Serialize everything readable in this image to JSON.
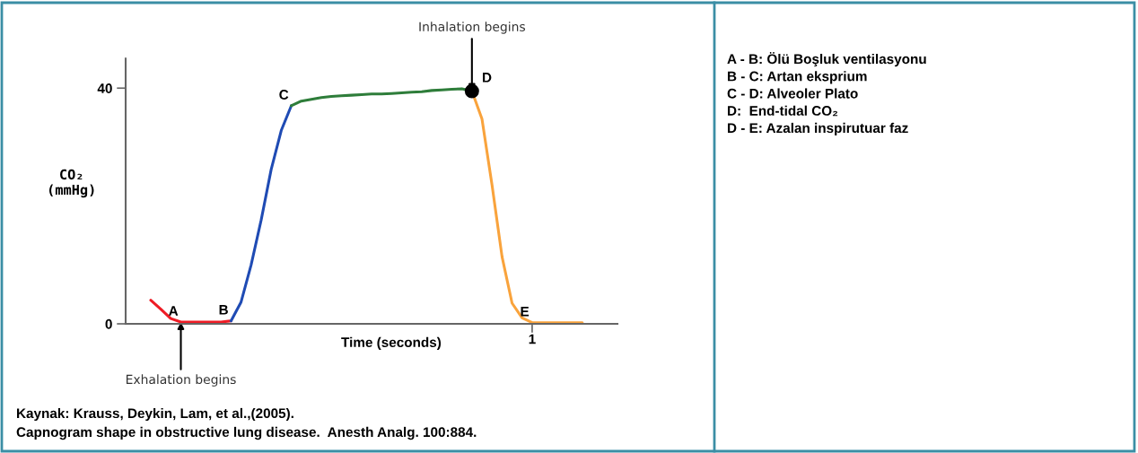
{
  "chart_data": {
    "type": "line",
    "xlabel": "Time (seconds)",
    "ylabel": "CO₂\n(mmHg)",
    "categories": [
      null,
      null,
      null,
      null,
      null,
      null,
      null,
      null,
      null,
      null,
      null,
      null,
      null,
      null,
      null,
      null,
      null,
      null,
      null,
      null,
      null,
      null,
      null,
      null,
      null,
      null,
      null,
      null,
      null,
      null,
      null,
      null,
      null,
      null,
      null,
      null,
      null,
      null,
      null,
      null,
      "1",
      null,
      null,
      null,
      null,
      null,
      null,
      null,
      null
    ],
    "ylim": [
      0,
      45
    ],
    "yticks": [
      0,
      40
    ],
    "grid": false,
    "legend": false,
    "marker": "none",
    "line_style": "solid",
    "series": [
      {
        "color": "#ee1c25",
        "values": [
          null,
          null,
          4.0,
          2.5,
          0.9,
          0.3,
          0.3,
          0.3,
          0.3,
          0.3,
          0.5,
          null,
          null,
          null,
          null,
          null,
          null,
          null,
          null,
          null,
          null,
          null,
          null,
          null,
          null,
          null,
          null,
          null,
          null,
          null,
          null,
          null,
          null,
          null,
          null,
          null,
          null,
          null,
          null,
          null,
          null,
          null,
          null,
          null,
          null,
          null,
          null,
          null,
          null
        ],
        "value_labels": [
          null,
          null,
          null,
          null,
          null,
          "A",
          null,
          null,
          null,
          null,
          "B",
          null,
          null,
          null,
          null,
          null,
          null,
          null,
          null,
          null,
          null,
          null,
          null,
          null,
          null,
          null,
          null,
          null,
          null,
          null,
          null,
          null,
          null,
          null,
          null,
          null,
          null,
          null,
          null,
          null,
          null,
          null,
          null,
          null,
          null,
          null,
          null,
          null,
          null
        ]
      },
      {
        "color": "#1f4bb4",
        "values": [
          null,
          null,
          null,
          null,
          null,
          null,
          null,
          null,
          null,
          null,
          0.5,
          3.7,
          10.0,
          17.6,
          26.2,
          32.8,
          37.0,
          null,
          null,
          null,
          null,
          null,
          null,
          null,
          null,
          null,
          null,
          null,
          null,
          null,
          null,
          null,
          null,
          null,
          null,
          null,
          null,
          null,
          null,
          null,
          null,
          null,
          null,
          null,
          null,
          null,
          null,
          null,
          null
        ],
        "value_labels": [
          null,
          null,
          null,
          null,
          null,
          null,
          null,
          null,
          null,
          null,
          null,
          null,
          null,
          null,
          null,
          null,
          "C",
          null,
          null,
          null,
          null,
          null,
          null,
          null,
          null,
          null,
          null,
          null,
          null,
          null,
          null,
          null,
          null,
          null,
          null,
          null,
          null,
          null,
          null,
          null,
          null,
          null,
          null,
          null,
          null,
          null,
          null,
          null,
          null
        ]
      },
      {
        "color": "#2e7d3a",
        "values": [
          null,
          null,
          null,
          null,
          null,
          null,
          null,
          null,
          null,
          null,
          null,
          null,
          null,
          null,
          null,
          null,
          37.0,
          37.8,
          38.1,
          38.4,
          38.6,
          38.7,
          38.8,
          38.9,
          39.0,
          39.0,
          39.1,
          39.2,
          39.3,
          39.4,
          39.6,
          39.7,
          39.8,
          39.9,
          39.5,
          null,
          null,
          null,
          null,
          null,
          null,
          null,
          null,
          null,
          null,
          null,
          null,
          null,
          null
        ]
      },
      {
        "color": "#f9a33c",
        "values": [
          null,
          null,
          null,
          null,
          null,
          null,
          null,
          null,
          null,
          null,
          null,
          null,
          null,
          null,
          null,
          null,
          null,
          null,
          null,
          null,
          null,
          null,
          null,
          null,
          null,
          null,
          null,
          null,
          null,
          null,
          null,
          null,
          null,
          null,
          39.5,
          34.8,
          23.6,
          11.4,
          3.5,
          1.0,
          0.2,
          0.2,
          0.2,
          0.2,
          0.2,
          0.2,
          null,
          null,
          null
        ],
        "value_labels": [
          null,
          null,
          null,
          null,
          null,
          null,
          null,
          null,
          null,
          null,
          null,
          null,
          null,
          null,
          null,
          null,
          null,
          null,
          null,
          null,
          null,
          null,
          null,
          null,
          null,
          null,
          null,
          null,
          null,
          null,
          null,
          null,
          null,
          null,
          null,
          null,
          null,
          null,
          null,
          null,
          "E",
          null,
          null,
          null,
          null,
          null,
          null,
          null,
          null
        ]
      },
      {
        "type": "scatter",
        "marker": "circle",
        "color": "#000000",
        "values": [
          null,
          null,
          null,
          null,
          null,
          null,
          null,
          null,
          null,
          null,
          null,
          null,
          null,
          null,
          null,
          null,
          null,
          null,
          null,
          null,
          null,
          null,
          null,
          null,
          null,
          null,
          null,
          null,
          null,
          null,
          null,
          null,
          null,
          null,
          39.5,
          null,
          null,
          null,
          null,
          null,
          null,
          null,
          null,
          null,
          null,
          null,
          null,
          null,
          null
        ],
        "value_labels": [
          null,
          null,
          null,
          null,
          null,
          null,
          null,
          null,
          null,
          null,
          null,
          null,
          null,
          null,
          null,
          null,
          null,
          null,
          null,
          null,
          null,
          null,
          null,
          null,
          null,
          null,
          null,
          null,
          null,
          null,
          null,
          null,
          null,
          null,
          "D",
          null,
          null,
          null,
          null,
          null,
          null,
          null,
          null,
          null,
          null,
          null,
          null,
          null,
          null
        ]
      }
    ],
    "annotations": [
      {
        "text": "Inhalation begins",
        "y": 39.5
      },
      {
        "text": "Exhalation begins",
        "y": 0.3
      },
      "A - B: Ölü Boşluk ventilasyonu\nB - C: Artan eksprium\nC - D: Alveoler Plato\nD:  End-tidal CO₂\nD - E: Azalan inspirutuar faz",
      "Kaynak: Krauss, Deykin, Lam, et al.,(2005).",
      "Capnogram shape in obstructive lung disease.  Anesth Analg. 100:884."
    ]
  }
}
